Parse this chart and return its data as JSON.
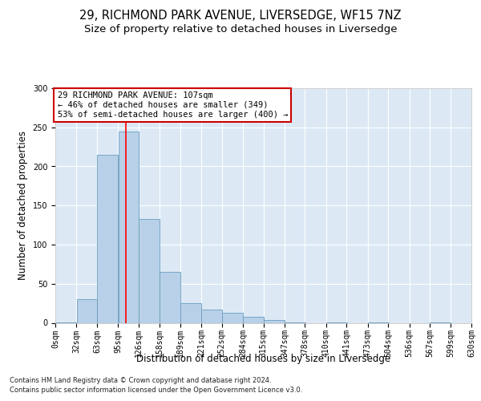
{
  "title1": "29, RICHMOND PARK AVENUE, LIVERSEDGE, WF15 7NZ",
  "title2": "Size of property relative to detached houses in Liversedge",
  "xlabel": "Distribution of detached houses by size in Liversedge",
  "ylabel": "Number of detached properties",
  "bin_labels": [
    "0sqm",
    "32sqm",
    "63sqm",
    "95sqm",
    "126sqm",
    "158sqm",
    "189sqm",
    "221sqm",
    "252sqm",
    "284sqm",
    "315sqm",
    "347sqm",
    "378sqm",
    "410sqm",
    "441sqm",
    "473sqm",
    "504sqm",
    "536sqm",
    "567sqm",
    "599sqm",
    "630sqm"
  ],
  "bin_edges": [
    0,
    32,
    63,
    95,
    126,
    158,
    189,
    221,
    252,
    284,
    315,
    347,
    378,
    410,
    441,
    473,
    504,
    536,
    567,
    599,
    630
  ],
  "bar_values": [
    1,
    30,
    215,
    245,
    133,
    65,
    25,
    17,
    13,
    8,
    4,
    1,
    0,
    1,
    0,
    1,
    0,
    0,
    1,
    0,
    1
  ],
  "bar_color": "#b8d0e8",
  "bar_edge_color": "#6a9fc0",
  "red_line_x": 107,
  "annotation_text": "29 RICHMOND PARK AVENUE: 107sqm\n← 46% of detached houses are smaller (349)\n53% of semi-detached houses are larger (400) →",
  "annotation_box_color": "#ffffff",
  "annotation_box_edge": "#cc0000",
  "footer1": "Contains HM Land Registry data © Crown copyright and database right 2024.",
  "footer2": "Contains public sector information licensed under the Open Government Licence v3.0.",
  "ylim": [
    0,
    300
  ],
  "yticks": [
    0,
    50,
    100,
    150,
    200,
    250,
    300
  ],
  "plot_bg_color": "#dce9f5",
  "title1_fontsize": 10.5,
  "title2_fontsize": 9.5,
  "tick_fontsize": 7,
  "ylabel_fontsize": 8.5,
  "xlabel_fontsize": 8.5,
  "annotation_fontsize": 7.5,
  "footer_fontsize": 6.0
}
